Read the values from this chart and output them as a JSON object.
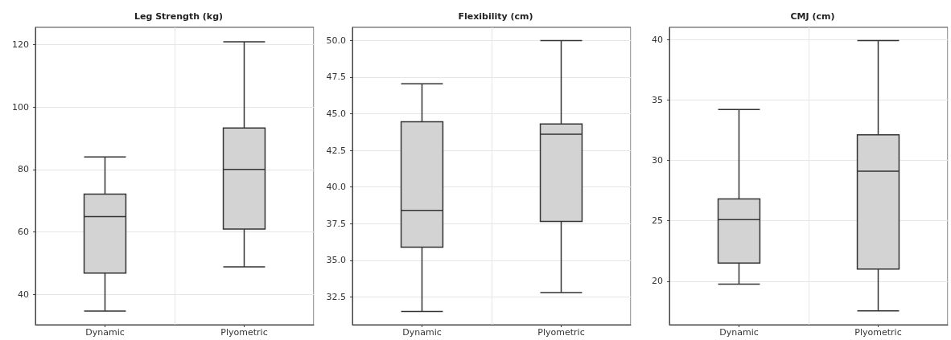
{
  "chart_data": [
    {
      "type": "box",
      "title": "Leg Strength (kg)",
      "categories": [
        "Dynamic",
        "Plyometric"
      ],
      "color": "#d3d3d3",
      "ylim": [
        30.3,
        125.5
      ],
      "yticks": [
        40,
        60,
        80,
        100,
        120
      ],
      "grid": true,
      "boxes": [
        {
          "low": 34.7,
          "q1": 46.8,
          "median": 64.9,
          "q3": 72.1,
          "high": 84
        },
        {
          "low": 48.8,
          "q1": 60.9,
          "median": 80,
          "q3": 93.3,
          "high": 120.9
        }
      ]
    },
    {
      "type": "box",
      "title": "Flexibility (cm)",
      "categories": [
        "Dynamic",
        "Plyometric"
      ],
      "color": "#d3d3d3",
      "ylim": [
        30.6,
        50.9
      ],
      "yticks": [
        {
          "value": 32.5,
          "label": "32.5"
        },
        {
          "value": 35,
          "label": "35.0"
        },
        {
          "value": 37.5,
          "label": "37.5"
        },
        {
          "value": 40,
          "label": "40.0"
        },
        {
          "value": 42.5,
          "label": "42.5"
        },
        {
          "value": 45,
          "label": "45.0"
        },
        {
          "value": 47.5,
          "label": "47.5"
        },
        {
          "value": 50,
          "label": "50.0"
        }
      ],
      "grid": true,
      "boxes": [
        {
          "low": 31.5,
          "q1": 35.9,
          "median": 38.4,
          "q3": 44.45,
          "high": 47.05
        },
        {
          "low": 32.8,
          "q1": 37.65,
          "median": 43.6,
          "q3": 44.3,
          "high": 50
        }
      ]
    },
    {
      "type": "box",
      "title": "CMJ (cm)",
      "categories": [
        "Dynamic",
        "Plyometric"
      ],
      "color": "#d3d3d3",
      "ylim": [
        16.4,
        41
      ],
      "yticks": [
        20,
        25,
        30,
        35,
        40
      ],
      "grid": true,
      "boxes": [
        {
          "low": 19.75,
          "q1": 21.5,
          "median": 25.1,
          "q3": 26.8,
          "high": 34.2
        },
        {
          "low": 17.55,
          "q1": 21,
          "median": 29.1,
          "q3": 32.1,
          "high": 39.9
        }
      ]
    }
  ]
}
